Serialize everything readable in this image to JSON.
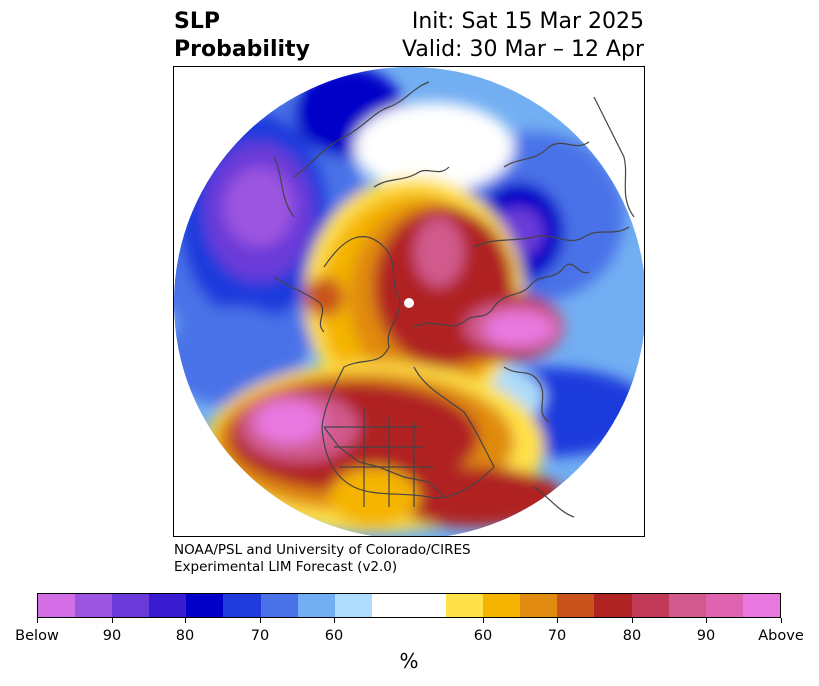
{
  "header": {
    "title_line1": "SLP",
    "title_line2": "Probability",
    "init": "Init: Sat 15 Mar 2025",
    "valid": "Valid: 30 Mar – 12 Apr"
  },
  "credit": {
    "line1": "NOAA/PSL and University of Colorado/CIRES",
    "line2": "Experimental LIM Forecast (v2.0)"
  },
  "colorbar": {
    "unit": "%",
    "colors": [
      "#d46ee6",
      "#9b55e0",
      "#6a3bd8",
      "#3a1cd0",
      "#0000c8",
      "#1f3bdc",
      "#4a72e8",
      "#72aef2",
      "#aedcfc",
      "#ffffff",
      "#ffe14a",
      "#f4b400",
      "#e08a10",
      "#c8541c",
      "#b02424",
      "#c03a58",
      "#d05a8c",
      "#de64b0",
      "#e878e0"
    ],
    "tick_labels": [
      "Below",
      "90",
      "80",
      "70",
      "60",
      "60",
      "70",
      "80",
      "90",
      "Above"
    ]
  },
  "map": {
    "projection": "north-polar-stereographic",
    "features": [
      "coastlines",
      "country-borders",
      "us-state-borders"
    ]
  }
}
